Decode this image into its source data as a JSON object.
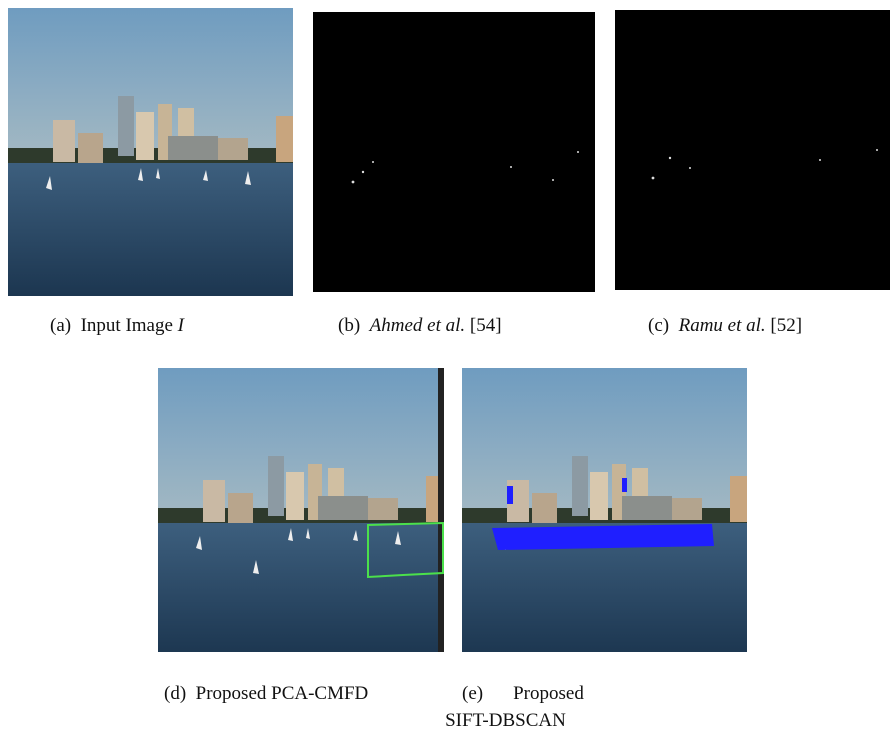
{
  "figure": {
    "panels": [
      {
        "label": "(a)",
        "text": "Input Image",
        "symbol": "I"
      },
      {
        "label": "(b)",
        "author": "Ahmed et al.",
        "ref": "[54]"
      },
      {
        "label": "(c)",
        "author": "Ramu et al.",
        "ref": "[52]"
      },
      {
        "label": "(d)",
        "text": "Proposed PCA-CMFD"
      },
      {
        "label": "(e)",
        "text": "Proposed SIFT-DBSCAN"
      }
    ]
  }
}
